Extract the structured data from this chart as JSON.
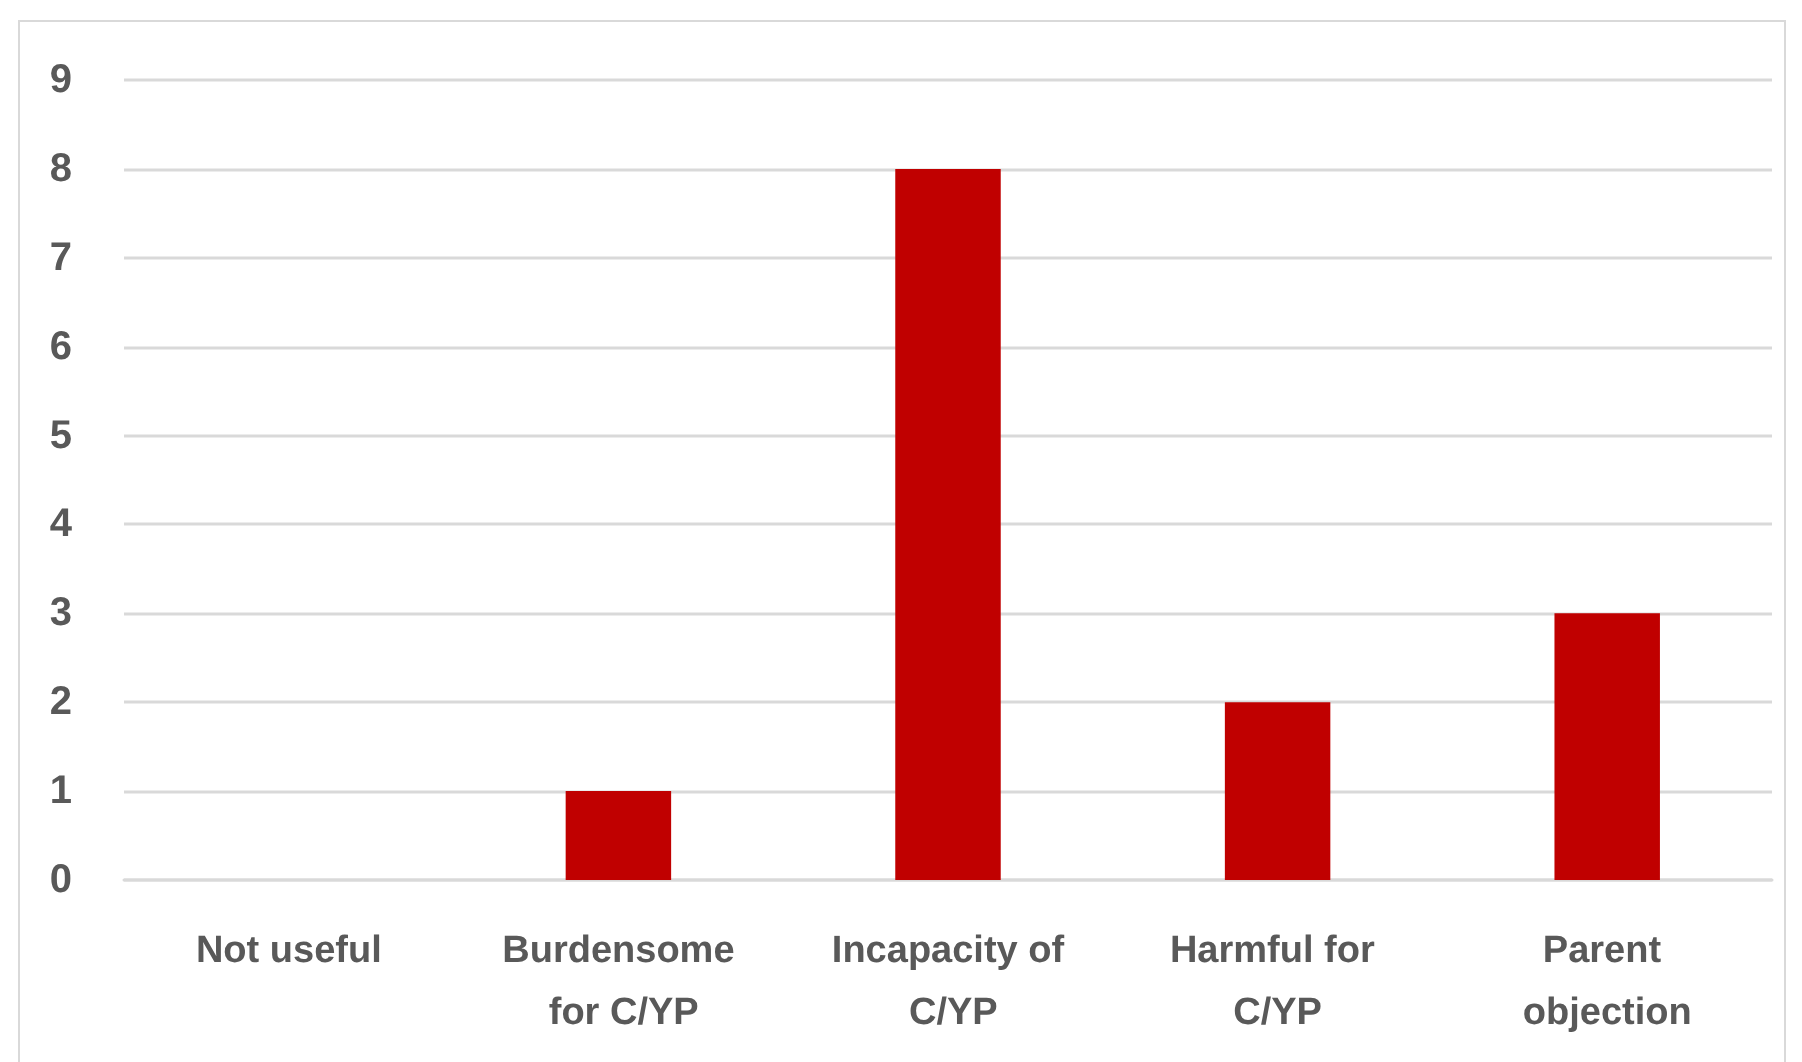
{
  "chart_data": {
    "type": "bar",
    "categories": [
      "Not useful",
      "Burdensome for C/YP",
      "Incapacity of C/YP",
      "Harmful for C/YP",
      "Parent objection"
    ],
    "values": [
      0,
      1,
      8,
      2,
      3
    ],
    "color": "#c00000",
    "ylim": [
      0,
      9
    ],
    "yticks": [
      0,
      1,
      2,
      3,
      4,
      5,
      6,
      7,
      8,
      9
    ],
    "grid": "y"
  }
}
